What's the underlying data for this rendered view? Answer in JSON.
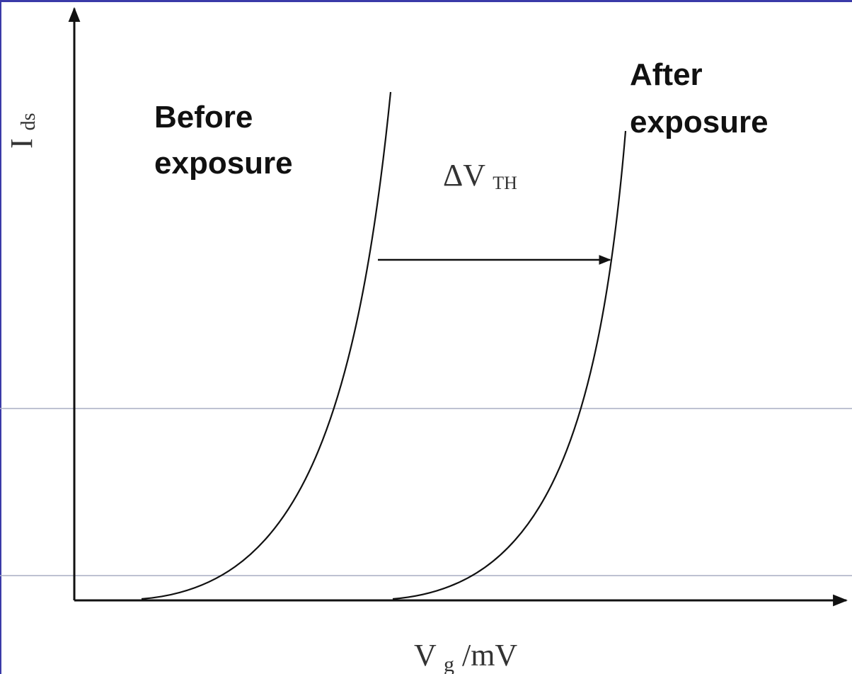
{
  "diagram": {
    "axes": {
      "y_label_main": "I",
      "y_label_sub": "ds",
      "x_label_main": "V",
      "x_label_sub": "g",
      "x_label_unit": " /mV"
    },
    "curves": {
      "before_line1": "Before",
      "before_line2": "exposure",
      "after_line1": "After",
      "after_line2": "exposure"
    },
    "shift": {
      "symbol": "ΔV",
      "subscript": "TH"
    },
    "colors": {
      "frame_border": "#3a3aa8",
      "guide_lines": "#a9adc4",
      "ink": "#111111"
    }
  }
}
